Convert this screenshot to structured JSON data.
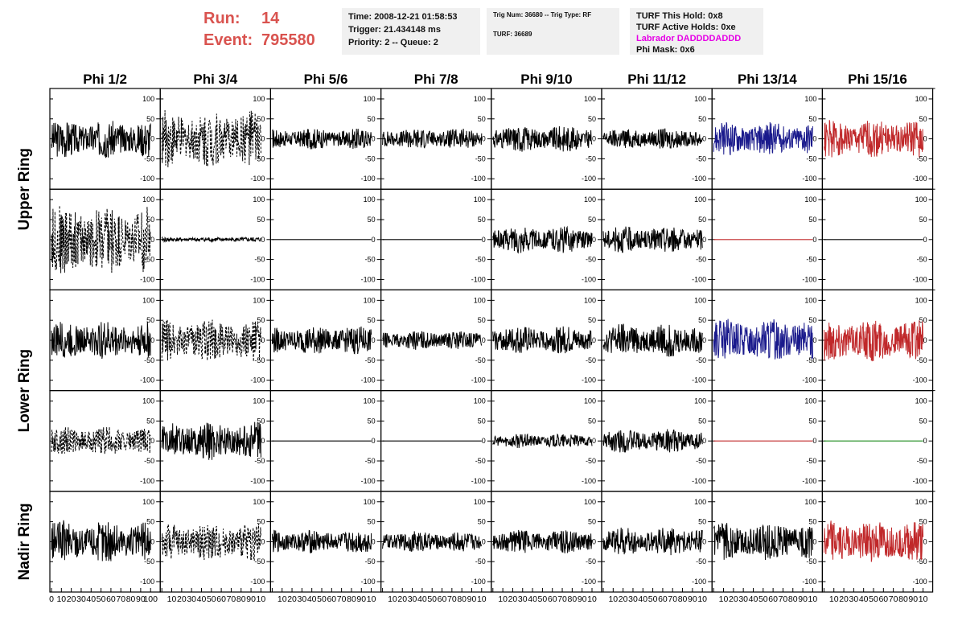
{
  "header": {
    "run_label": "Run:",
    "run_value": "14",
    "event_label": "Event:",
    "event_value": "795580"
  },
  "time_box": {
    "time": "Time: 2008-12-21 01:58:53",
    "trigger": "Trigger: 21.434148 ms",
    "priority": "Priority: 2 -- Queue: 2"
  },
  "trig_box": {
    "trig": "Trig Num: 36680 -- Trig Type: RF",
    "turf": "TURF: 36689"
  },
  "turf_box": {
    "hold": "TURF This Hold: 0x8",
    "active": "TURF Active Holds: 0xe",
    "labrador": "Labrador DADDDDADDD",
    "mask": "Phi Mask: 0x6"
  },
  "colors": {
    "black": "#000000",
    "blue": "#1a1a8c",
    "red": "#c0282a",
    "green": "#1a8a1a"
  },
  "chart_data": {
    "type": "line",
    "columns": [
      "Phi 1/2",
      "Phi 3/4",
      "Phi 5/6",
      "Phi 7/8",
      "Phi 9/10",
      "Phi 11/12",
      "Phi 13/14",
      "Phi 15/16"
    ],
    "ring_labels": [
      "Upper Ring",
      "Lower Ring",
      "Nadir Ring"
    ],
    "ylim": [
      -110,
      110
    ],
    "y_ticks": [
      -100,
      -50,
      0,
      50,
      100
    ],
    "xlim": [
      0,
      100
    ],
    "x_ticks": [
      0,
      10,
      20,
      30,
      40,
      50,
      60,
      70,
      80,
      90,
      100
    ],
    "x_tick_labels_leftmost": [
      "0",
      "10",
      "20",
      "30",
      "40",
      "50",
      "60",
      "70",
      "80",
      "90",
      "100"
    ],
    "x_tick_labels_other": [
      "",
      "10",
      "20",
      "30",
      "40",
      "50",
      "60",
      "70",
      "80",
      "90",
      "10"
    ],
    "panels": [
      [
        {
          "color": "black",
          "style": "solid",
          "amp": 40
        },
        {
          "color": "black",
          "style": "dashed",
          "amp": 60
        },
        {
          "color": "black",
          "style": "solid",
          "amp": 22
        },
        {
          "color": "black",
          "style": "solid",
          "amp": 22
        },
        {
          "color": "black",
          "style": "solid",
          "amp": 28
        },
        {
          "color": "black",
          "style": "solid",
          "amp": 22
        },
        {
          "color": "blue",
          "style": "solid",
          "amp": 35
        },
        {
          "color": "red",
          "style": "solid",
          "amp": 40
        }
      ],
      [
        {
          "color": "black",
          "style": "dashed",
          "amp": 75
        },
        {
          "color": "black",
          "style": "solid",
          "amp": 5
        },
        {
          "color": "black",
          "style": "solid",
          "amp": 0
        },
        {
          "color": "black",
          "style": "solid",
          "amp": 0
        },
        {
          "color": "black",
          "style": "solid",
          "amp": 28
        },
        {
          "color": "black",
          "style": "solid",
          "amp": 28
        },
        {
          "color": "red",
          "style": "solid",
          "amp": 0
        },
        {
          "color": "black",
          "style": "solid",
          "amp": 0
        }
      ],
      [
        {
          "color": "black",
          "style": "solid",
          "amp": 40
        },
        {
          "color": "black",
          "style": "dashed",
          "amp": 45
        },
        {
          "color": "black",
          "style": "solid",
          "amp": 30
        },
        {
          "color": "black",
          "style": "solid",
          "amp": 20
        },
        {
          "color": "black",
          "style": "solid",
          "amp": 30
        },
        {
          "color": "black",
          "style": "solid",
          "amp": 35
        },
        {
          "color": "blue",
          "style": "solid",
          "amp": 45
        },
        {
          "color": "red",
          "style": "solid",
          "amp": 45
        }
      ],
      [
        {
          "color": "black",
          "style": "dashed",
          "amp": 30
        },
        {
          "color": "black",
          "style": "solid",
          "amp": 40
        },
        {
          "color": "black",
          "style": "solid",
          "amp": 0
        },
        {
          "color": "black",
          "style": "solid",
          "amp": 0
        },
        {
          "color": "black",
          "style": "solid",
          "amp": 15
        },
        {
          "color": "black",
          "style": "solid",
          "amp": 25
        },
        {
          "color": "red",
          "style": "solid",
          "amp": 0
        },
        {
          "color": "green",
          "style": "solid",
          "amp": 0
        }
      ],
      [
        {
          "color": "black",
          "style": "solid",
          "amp": 45
        },
        {
          "color": "black",
          "style": "dashed",
          "amp": 40
        },
        {
          "color": "black",
          "style": "solid",
          "amp": 25
        },
        {
          "color": "black",
          "style": "solid",
          "amp": 22
        },
        {
          "color": "black",
          "style": "solid",
          "amp": 25
        },
        {
          "color": "black",
          "style": "solid",
          "amp": 30
        },
        {
          "color": "black",
          "style": "solid",
          "amp": 40
        },
        {
          "color": "red",
          "style": "solid",
          "amp": 45
        }
      ]
    ]
  }
}
